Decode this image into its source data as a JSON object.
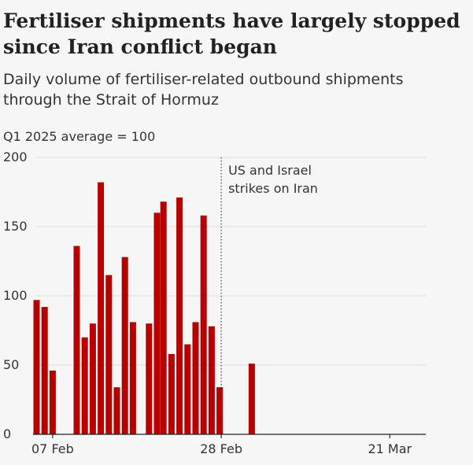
{
  "header": {
    "title_line1": "Fertiliser shipments have largely stopped",
    "title_line2": "since Iran conflict began",
    "subtitle_line1": "Daily volume of fertiliser-related outbound shipments",
    "subtitle_line2": "through the Strait of Hormuz",
    "unit_label": "Q1 2025 average = 100"
  },
  "chart_data": {
    "type": "bar",
    "title": "Fertiliser shipments have largely stopped since Iran conflict began",
    "ylabel": "Q1 2025 average = 100",
    "ylim": [
      0,
      200
    ],
    "yticks": [
      "0",
      "50",
      "100",
      "150",
      "200"
    ],
    "x_start": "2026-02-05",
    "x_end": "2026-03-25",
    "xticks": [
      {
        "day": 2,
        "label": "07 Feb"
      },
      {
        "day": 23,
        "label": "28 Feb"
      },
      {
        "day": 44,
        "label": "21 Mar"
      }
    ],
    "bar_color": "#b80000",
    "days": [
      0,
      1,
      2,
      3,
      4,
      5,
      6,
      7,
      8,
      9,
      10,
      11,
      12,
      13,
      14,
      15,
      15.8,
      16.8,
      17.8,
      18.8,
      19.8,
      20.8,
      21.8,
      22.8,
      23.8,
      24.8,
      25.8,
      26.8
    ],
    "values": [
      97,
      92,
      46,
      0,
      0,
      136,
      70,
      80,
      182,
      115,
      34,
      128,
      81,
      0,
      80,
      160,
      168,
      58,
      171,
      65,
      81,
      158,
      78,
      34,
      0,
      0,
      0,
      51
    ],
    "event": {
      "day": 23,
      "label_line1": "US and Israel",
      "label_line2": "strikes on Iran"
    }
  }
}
